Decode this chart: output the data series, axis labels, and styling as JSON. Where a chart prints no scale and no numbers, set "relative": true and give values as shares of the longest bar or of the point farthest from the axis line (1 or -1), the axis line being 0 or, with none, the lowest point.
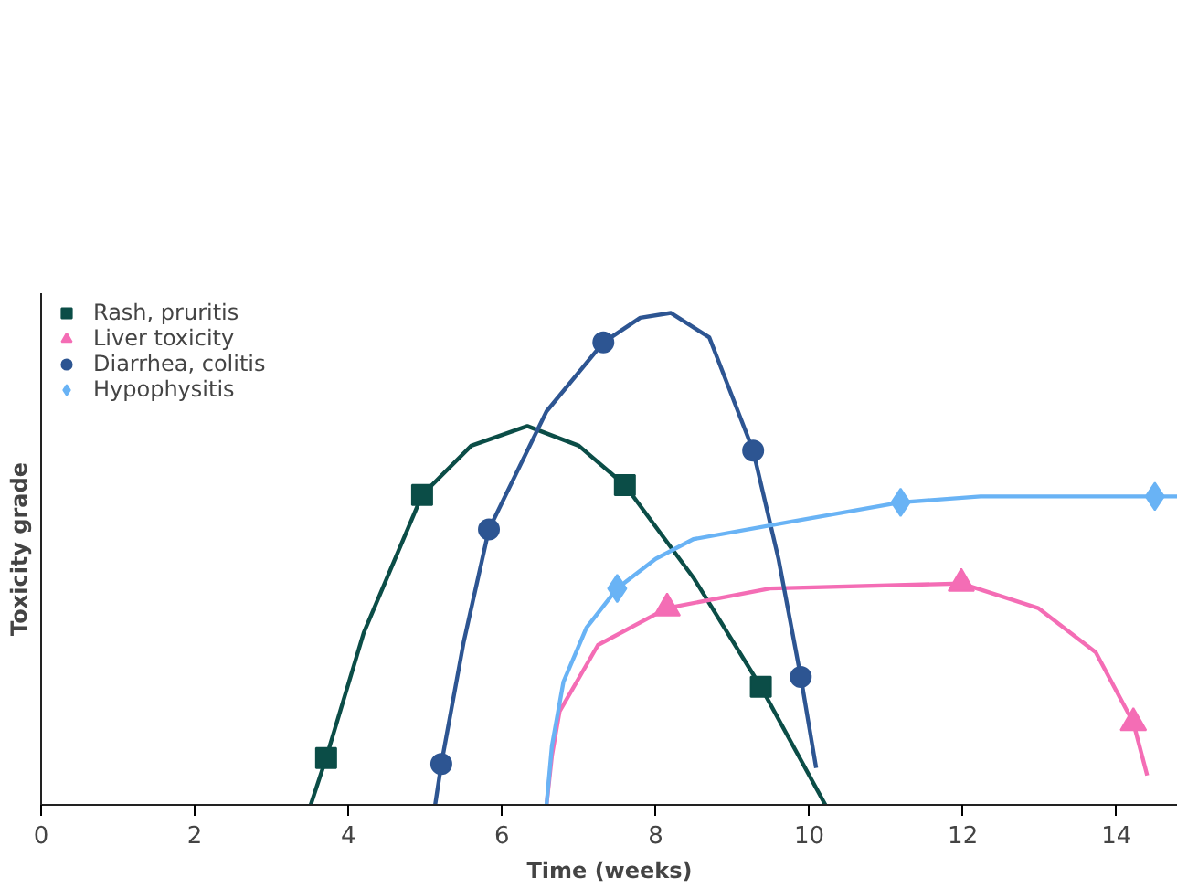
{
  "chart_data": {
    "type": "line",
    "relative": true,
    "xlabel": "Time (weeks)",
    "ylabel": "Toxicity grade",
    "xlim": [
      0,
      14.8
    ],
    "xticks": [
      0,
      2,
      4,
      6,
      8,
      10,
      12,
      14
    ],
    "tick_labels": "x",
    "legend": "top left",
    "series": [
      {
        "color": "#0b4d47",
        "x": [
          3.51,
          3.71,
          4.2,
          4.96,
          5.6,
          6.33,
          7.0,
          7.6,
          8.5,
          9.37,
          10.21
        ],
        "values": [
          0,
          0.095,
          0.35,
          0.63,
          0.73,
          0.77,
          0.73,
          0.65,
          0.46,
          0.24,
          0
        ]
      },
      {
        "color": "#f46db5",
        "x": [
          6.58,
          6.65,
          6.75,
          7.25,
          8.15,
          9.49,
          11.98,
          12.98,
          13.73,
          14.22,
          14.4
        ],
        "values": [
          0,
          0.1,
          0.19,
          0.325,
          0.4,
          0.44,
          0.45,
          0.4,
          0.31,
          0.167,
          0.06
        ]
      },
      {
        "color": "#2d5592",
        "x": [
          5.13,
          5.21,
          5.5,
          5.83,
          6.58,
          7.32,
          7.8,
          8.2,
          8.7,
          9.27,
          9.6,
          9.89,
          10.09
        ],
        "values": [
          0,
          0.083,
          0.33,
          0.56,
          0.8,
          0.94,
          0.99,
          1.0,
          0.95,
          0.72,
          0.5,
          0.26,
          0.075
        ]
      },
      {
        "color": "#69b3f5",
        "x": [
          6.58,
          6.65,
          6.8,
          7.1,
          7.5,
          8.0,
          8.49,
          9.74,
          11.19,
          12.23,
          14.5,
          14.8
        ],
        "values": [
          0,
          0.12,
          0.25,
          0.36,
          0.44,
          0.5,
          0.54,
          0.575,
          0.615,
          0.627,
          0.627,
          0.627
        ]
      },
      {
        "type": "scatter",
        "name": "Rash, pruritis",
        "marker": "square",
        "color": "#0b4d47",
        "x": [
          3.71,
          4.96,
          7.6,
          9.37
        ],
        "values": [
          0.095,
          0.63,
          0.65,
          0.24
        ]
      },
      {
        "type": "scatter",
        "name": "Liver toxicity",
        "marker": "triangle",
        "color": "#f46db5",
        "x": [
          8.15,
          11.98,
          14.22
        ],
        "values": [
          0.4,
          0.45,
          0.167
        ]
      },
      {
        "type": "scatter",
        "name": "Diarrhea, colitis",
        "marker": "circle",
        "color": "#2d5592",
        "x": [
          5.21,
          5.83,
          7.32,
          9.27,
          9.89
        ],
        "values": [
          0.083,
          0.56,
          0.94,
          0.72,
          0.26
        ]
      },
      {
        "type": "scatter",
        "name": "Hypophysitis",
        "marker": "diamond",
        "color": "#69b3f5",
        "x": [
          7.5,
          11.19,
          14.5
        ],
        "values": [
          0.44,
          0.615,
          0.627
        ]
      }
    ]
  }
}
